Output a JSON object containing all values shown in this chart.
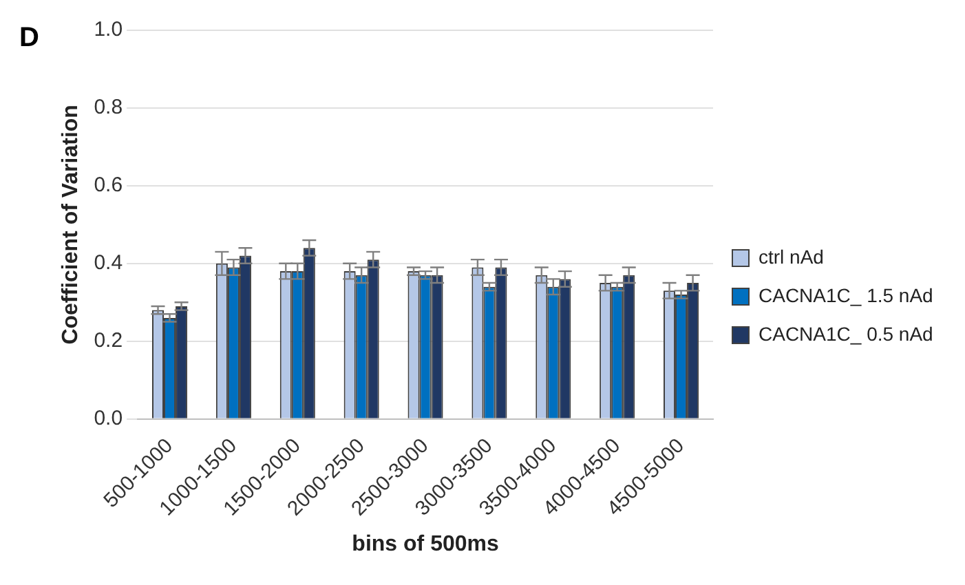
{
  "chart_data": {
    "type": "bar",
    "annotations": [
      "D"
    ],
    "xlabel": "bins of 500ms",
    "ylabel": "Coefficient of Variation",
    "categories": [
      "500-1000",
      "1000-1500",
      "1500-2000",
      "2000-2500",
      "2500-3000",
      "3000-3500",
      "3500-4000",
      "4000-4500",
      "4500-5000"
    ],
    "series": [
      {
        "name": "ctrl nAd",
        "color": "#b4c7e7",
        "values": [
          0.28,
          0.4,
          0.38,
          0.38,
          0.38,
          0.39,
          0.37,
          0.35,
          0.33
        ],
        "errors": [
          0.01,
          0.03,
          0.02,
          0.02,
          0.01,
          0.02,
          0.02,
          0.02,
          0.02
        ]
      },
      {
        "name": "CACNA1C_ 1.5 nAd",
        "color": "#0070c0",
        "values": [
          0.26,
          0.39,
          0.38,
          0.37,
          0.37,
          0.34,
          0.34,
          0.34,
          0.32
        ],
        "errors": [
          0.01,
          0.02,
          0.02,
          0.02,
          0.01,
          0.01,
          0.02,
          0.01,
          0.01
        ]
      },
      {
        "name": "CACNA1C_ 0.5 nAd",
        "color": "#203864",
        "values": [
          0.29,
          0.42,
          0.44,
          0.41,
          0.37,
          0.39,
          0.36,
          0.37,
          0.35
        ],
        "errors": [
          0.01,
          0.02,
          0.02,
          0.02,
          0.02,
          0.02,
          0.02,
          0.02,
          0.02
        ]
      }
    ],
    "ylim": [
      0,
      1
    ],
    "yticks": [
      {
        "value": 0,
        "label": "0.0"
      },
      {
        "value": 0.2,
        "label": "0.2"
      },
      {
        "value": 0.4,
        "label": "0.4"
      },
      {
        "value": 0.6,
        "label": "0.6"
      },
      {
        "value": 0.8,
        "label": "0.8"
      },
      {
        "value": 1,
        "label": "1.0"
      }
    ],
    "grid": "y",
    "legend": "right"
  }
}
